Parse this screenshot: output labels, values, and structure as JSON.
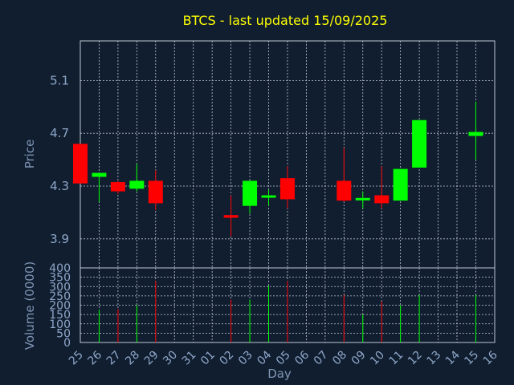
{
  "chart_data": {
    "type": "candlestick",
    "title": "BTCS - last updated 15/09/2025",
    "xlabel": "Day",
    "colors": {
      "background": "#101e30",
      "up": "#00ff00",
      "down": "#ff0000",
      "title": "#ffff00",
      "axis_text": "#8fa7c8",
      "grid": "#c0c8d4"
    },
    "price_panel": {
      "ylabel": "Price",
      "ylim": [
        3.68,
        5.4
      ],
      "yticks": [
        "3.9",
        "4.3",
        "4.7",
        "5.1"
      ],
      "ytick_values": [
        3.9,
        4.3,
        4.7,
        5.1
      ],
      "grid": true
    },
    "volume_panel": {
      "ylabel": "Volume (0000)",
      "ylim": [
        0,
        400
      ],
      "yticks": [
        "0",
        "50",
        "100",
        "150",
        "200",
        "250",
        "300",
        "350",
        "400"
      ],
      "ytick_values": [
        0,
        50,
        100,
        150,
        200,
        250,
        300,
        350,
        400
      ],
      "grid": true
    },
    "x_ticks": [
      "25",
      "26",
      "27",
      "28",
      "29",
      "30",
      "31",
      "01",
      "02",
      "03",
      "04",
      "05",
      "06",
      "07",
      "08",
      "09",
      "10",
      "11",
      "12",
      "13",
      "14",
      "15",
      "16"
    ],
    "candles": [
      {
        "day": "25",
        "open": 4.62,
        "high": 4.62,
        "low": 4.32,
        "close": 4.32,
        "volume": 0
      },
      {
        "day": "26",
        "open": 4.37,
        "high": 4.4,
        "low": 4.18,
        "close": 4.4,
        "volume": 175
      },
      {
        "day": "27",
        "open": 4.33,
        "high": 4.34,
        "low": 4.24,
        "close": 4.26,
        "volume": 180
      },
      {
        "day": "28",
        "open": 4.28,
        "high": 4.47,
        "low": 4.26,
        "close": 4.34,
        "volume": 200
      },
      {
        "day": "29",
        "open": 4.34,
        "high": 4.42,
        "low": 4.12,
        "close": 4.17,
        "volume": 330
      },
      {
        "day": "02",
        "open": 4.08,
        "high": 4.23,
        "low": 3.92,
        "close": 4.06,
        "volume": 230
      },
      {
        "day": "03",
        "open": 4.15,
        "high": 4.34,
        "low": 4.09,
        "close": 4.34,
        "volume": 230
      },
      {
        "day": "04",
        "open": 4.22,
        "high": 4.27,
        "low": 4.15,
        "close": 4.23,
        "volume": 305
      },
      {
        "day": "05",
        "open": 4.36,
        "high": 4.45,
        "low": 4.13,
        "close": 4.2,
        "volume": 330
      },
      {
        "day": "08",
        "open": 4.34,
        "high": 4.59,
        "low": 4.18,
        "close": 4.19,
        "volume": 255
      },
      {
        "day": "09",
        "open": 4.2,
        "high": 4.26,
        "low": 4.13,
        "close": 4.21,
        "volume": 150
      },
      {
        "day": "10",
        "open": 4.23,
        "high": 4.45,
        "low": 4.13,
        "close": 4.17,
        "volume": 220
      },
      {
        "day": "11",
        "open": 4.19,
        "high": 4.43,
        "low": 4.19,
        "close": 4.43,
        "volume": 200
      },
      {
        "day": "12",
        "open": 4.44,
        "high": 4.8,
        "low": 4.44,
        "close": 4.8,
        "volume": 255
      },
      {
        "day": "15",
        "open": 4.68,
        "high": 4.94,
        "low": 4.5,
        "close": 4.71,
        "volume": 255
      }
    ]
  }
}
